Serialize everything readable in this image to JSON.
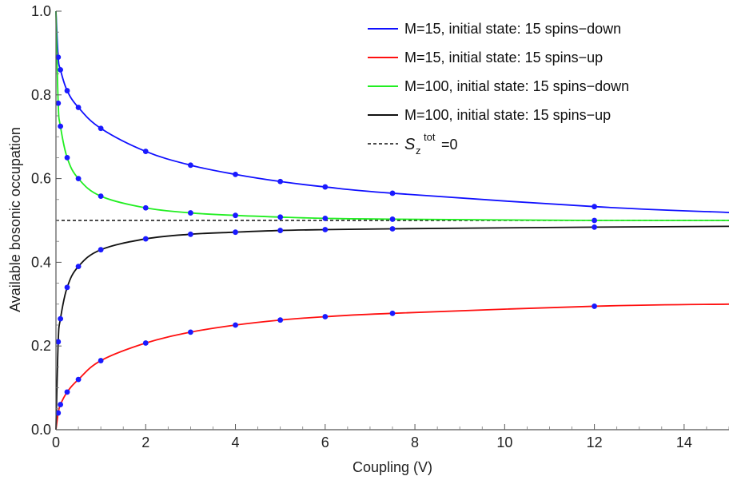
{
  "chart_data": {
    "type": "line",
    "title": "",
    "xlabel": "Coupling (V)",
    "ylabel": "Available bosonic occupation",
    "xlim": [
      0,
      15
    ],
    "ylim": [
      0,
      1.0
    ],
    "xticks": [
      "0",
      "2",
      "4",
      "6",
      "8",
      "10",
      "12",
      "14"
    ],
    "yticks": [
      "0.0",
      "0.2",
      "0.4",
      "0.6",
      "0.8",
      "1.0"
    ],
    "grid": false,
    "legend_position": "top-right",
    "series": [
      {
        "name": "M=15, initial state: 15 spins−down",
        "color": "#1010ff",
        "x": [
          0,
          0.05,
          0.1,
          0.25,
          0.5,
          1,
          2,
          3,
          4,
          5,
          6,
          7.5,
          12,
          15
        ],
        "y": [
          1.0,
          0.89,
          0.86,
          0.81,
          0.77,
          0.72,
          0.665,
          0.632,
          0.61,
          0.593,
          0.58,
          0.565,
          0.533,
          0.519
        ]
      },
      {
        "name": "M=15, initial state: 15 spins−up",
        "color": "#ff1010",
        "x": [
          0,
          0.05,
          0.1,
          0.25,
          0.5,
          1,
          2,
          3,
          4,
          5,
          6,
          7.5,
          12,
          15
        ],
        "y": [
          0.0,
          0.04,
          0.06,
          0.09,
          0.12,
          0.165,
          0.207,
          0.233,
          0.25,
          0.262,
          0.27,
          0.278,
          0.295,
          0.3
        ]
      },
      {
        "name": "M=100, initial state: 15 spins−down",
        "color": "#22ee22",
        "x": [
          0,
          0.05,
          0.1,
          0.25,
          0.5,
          1,
          2,
          3,
          4,
          5,
          6,
          7.5,
          12,
          15
        ],
        "y": [
          1.0,
          0.78,
          0.725,
          0.65,
          0.6,
          0.558,
          0.53,
          0.518,
          0.512,
          0.508,
          0.505,
          0.503,
          0.5,
          0.5
        ]
      },
      {
        "name": "M=100, initial state: 15 spins−up",
        "color": "#111111",
        "x": [
          0,
          0.05,
          0.1,
          0.25,
          0.5,
          1,
          2,
          3,
          4,
          5,
          6,
          7.5,
          12,
          15
        ],
        "y": [
          0.0,
          0.21,
          0.265,
          0.34,
          0.39,
          0.43,
          0.456,
          0.467,
          0.472,
          0.476,
          0.478,
          0.48,
          0.484,
          0.486
        ]
      }
    ],
    "reference_line": {
      "name_symbol": "S",
      "name_subscript": "z",
      "name_superscript": "tot",
      "name_suffix": "=0",
      "y": 0.5,
      "style": "dashed",
      "color": "#111111"
    },
    "marker_color": "#1a1aff"
  }
}
